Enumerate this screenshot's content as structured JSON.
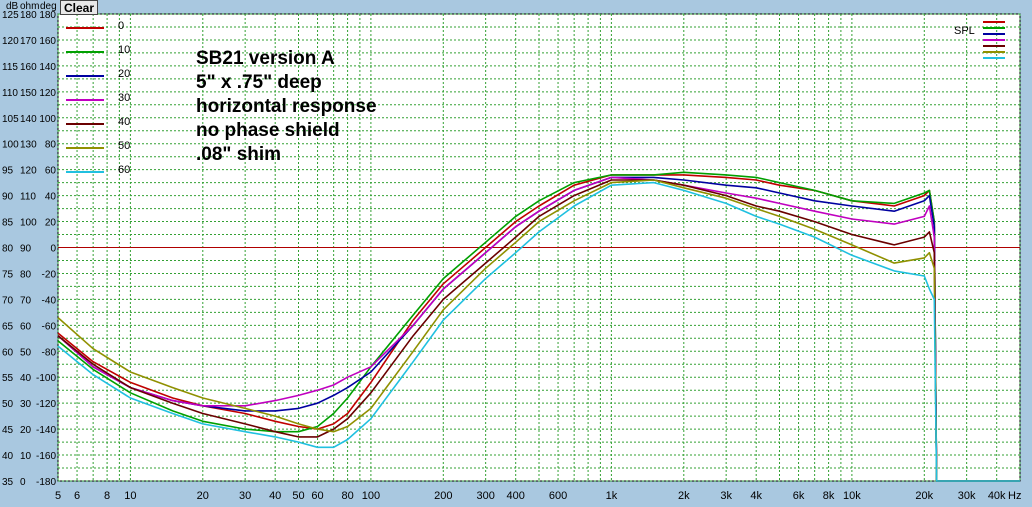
{
  "toolbar": {
    "clear_label": "Clear"
  },
  "axis_headers": {
    "db": "dB",
    "ohm": "ohm",
    "deg": "deg"
  },
  "chart_data": {
    "type": "line",
    "x_scale": "log",
    "xlim": [
      5,
      50000
    ],
    "x_ticks": [
      5,
      6,
      8,
      10,
      20,
      30,
      40,
      50,
      60,
      80,
      100,
      200,
      300,
      400,
      600,
      1000,
      2000,
      3000,
      4000,
      6000,
      8000,
      10000,
      20000,
      30000,
      40000
    ],
    "x_tick_labels": [
      "5",
      "6",
      "8",
      "10",
      "20",
      "30",
      "40",
      "50",
      "60",
      "80",
      "100",
      "200",
      "300",
      "400",
      "600",
      "1k",
      "2k",
      "3k",
      "4k",
      "6k",
      "8k",
      "10k",
      "20k",
      "30k",
      "40k"
    ],
    "x_unit": "Hz",
    "ylim": [
      35,
      125
    ],
    "y_labels_db": [
      "125",
      "120",
      "115",
      "110",
      "105",
      "100",
      "95",
      "90",
      "85",
      "80",
      "75",
      "70",
      "65",
      "60",
      "55",
      "50",
      "45",
      "40",
      "35"
    ],
    "y_labels_ohm": [
      "180",
      "170",
      "160",
      "150",
      "140",
      "130",
      "120",
      "110",
      "100",
      "90",
      "80",
      "70",
      "60",
      "50",
      "40",
      "30",
      "20",
      "10",
      "0"
    ],
    "y_labels_deg": [
      "180",
      "160",
      "140",
      "120",
      "100",
      "80",
      "60",
      "40",
      "20",
      "0",
      "-20",
      "-40",
      "-60",
      "-80",
      "-100",
      "-120",
      "-140",
      "-160",
      "-180"
    ],
    "grid": true,
    "reference_line_y": 80,
    "annotations": [
      "SB21 version A",
      "5\" x .75\" deep",
      "horizontal response",
      "no phase shield",
      ".08\" shim"
    ],
    "legend_title": "SPL",
    "series": [
      {
        "name": "0",
        "color": "#c00000",
        "points": [
          [
            5,
            63.5
          ],
          [
            7,
            58
          ],
          [
            10,
            54
          ],
          [
            15,
            51
          ],
          [
            20,
            49.5
          ],
          [
            30,
            48
          ],
          [
            40,
            46.5
          ],
          [
            50,
            45.5
          ],
          [
            60,
            45
          ],
          [
            70,
            46
          ],
          [
            80,
            48
          ],
          [
            100,
            54
          ],
          [
            150,
            66
          ],
          [
            200,
            73
          ],
          [
            300,
            80
          ],
          [
            400,
            85
          ],
          [
            500,
            88
          ],
          [
            700,
            92
          ],
          [
            1000,
            94
          ],
          [
            1500,
            94
          ],
          [
            2000,
            94
          ],
          [
            3000,
            93.5
          ],
          [
            4000,
            93
          ],
          [
            5000,
            92
          ],
          [
            7000,
            91
          ],
          [
            10000,
            89
          ],
          [
            15000,
            88
          ],
          [
            20000,
            90
          ],
          [
            21000,
            91
          ],
          [
            22000,
            85
          ],
          [
            22500,
            35
          ]
        ]
      },
      {
        "name": "10",
        "color": "#00a000",
        "points": [
          [
            5,
            62
          ],
          [
            7,
            56.5
          ],
          [
            10,
            52
          ],
          [
            15,
            48.5
          ],
          [
            20,
            46.5
          ],
          [
            30,
            45
          ],
          [
            40,
            44.5
          ],
          [
            50,
            44.5
          ],
          [
            60,
            45.5
          ],
          [
            70,
            48
          ],
          [
            80,
            51
          ],
          [
            100,
            57
          ],
          [
            150,
            67
          ],
          [
            200,
            74
          ],
          [
            300,
            81
          ],
          [
            400,
            86
          ],
          [
            500,
            89
          ],
          [
            700,
            92.5
          ],
          [
            1000,
            94
          ],
          [
            1500,
            94
          ],
          [
            2000,
            94.5
          ],
          [
            3000,
            94
          ],
          [
            4000,
            93.5
          ],
          [
            5000,
            92.5
          ],
          [
            7000,
            91
          ],
          [
            10000,
            89
          ],
          [
            15000,
            88.5
          ],
          [
            20000,
            90.5
          ],
          [
            21000,
            91
          ],
          [
            22000,
            85
          ],
          [
            22500,
            35
          ]
        ]
      },
      {
        "name": "20",
        "color": "#0000a0",
        "points": [
          [
            5,
            63
          ],
          [
            7,
            57
          ],
          [
            10,
            53
          ],
          [
            15,
            50.5
          ],
          [
            20,
            49.5
          ],
          [
            30,
            48.5
          ],
          [
            40,
            48.5
          ],
          [
            50,
            49
          ],
          [
            60,
            50
          ],
          [
            70,
            51.5
          ],
          [
            80,
            53
          ],
          [
            100,
            56
          ],
          [
            150,
            65
          ],
          [
            200,
            72
          ],
          [
            300,
            79
          ],
          [
            400,
            84
          ],
          [
            500,
            87
          ],
          [
            700,
            91
          ],
          [
            1000,
            93.5
          ],
          [
            1500,
            93.5
          ],
          [
            2000,
            93
          ],
          [
            3000,
            92
          ],
          [
            4000,
            91.5
          ],
          [
            5000,
            90.5
          ],
          [
            7000,
            89
          ],
          [
            10000,
            88
          ],
          [
            15000,
            87
          ],
          [
            20000,
            89
          ],
          [
            21000,
            90
          ],
          [
            22000,
            84
          ],
          [
            22500,
            35
          ]
        ]
      },
      {
        "name": "30",
        "color": "#c000c0",
        "points": [
          [
            5,
            63
          ],
          [
            7,
            57
          ],
          [
            10,
            53
          ],
          [
            15,
            50.5
          ],
          [
            20,
            49.5
          ],
          [
            30,
            49.5
          ],
          [
            40,
            50.5
          ],
          [
            50,
            51.5
          ],
          [
            60,
            52.5
          ],
          [
            70,
            53.5
          ],
          [
            80,
            55
          ],
          [
            100,
            57
          ],
          [
            150,
            65
          ],
          [
            200,
            72
          ],
          [
            300,
            79
          ],
          [
            400,
            84
          ],
          [
            500,
            87
          ],
          [
            700,
            91
          ],
          [
            1000,
            93.5
          ],
          [
            1500,
            93
          ],
          [
            2000,
            92
          ],
          [
            3000,
            90.5
          ],
          [
            4000,
            89.5
          ],
          [
            5000,
            88.5
          ],
          [
            7000,
            87
          ],
          [
            10000,
            85.5
          ],
          [
            15000,
            84.5
          ],
          [
            20000,
            86
          ],
          [
            21000,
            88
          ],
          [
            22000,
            82
          ],
          [
            22500,
            35
          ]
        ]
      },
      {
        "name": "40",
        "color": "#6a0000",
        "points": [
          [
            5,
            63
          ],
          [
            7,
            57.5
          ],
          [
            10,
            53
          ],
          [
            15,
            50
          ],
          [
            20,
            48
          ],
          [
            30,
            46
          ],
          [
            40,
            44.5
          ],
          [
            50,
            43.5
          ],
          [
            60,
            43.5
          ],
          [
            70,
            45
          ],
          [
            80,
            47
          ],
          [
            100,
            52
          ],
          [
            150,
            63
          ],
          [
            200,
            70
          ],
          [
            300,
            77
          ],
          [
            400,
            82
          ],
          [
            500,
            86
          ],
          [
            700,
            90
          ],
          [
            1000,
            93
          ],
          [
            1500,
            93
          ],
          [
            2000,
            92
          ],
          [
            3000,
            90
          ],
          [
            4000,
            88
          ],
          [
            5000,
            87
          ],
          [
            7000,
            85
          ],
          [
            10000,
            82.5
          ],
          [
            15000,
            80.5
          ],
          [
            20000,
            82
          ],
          [
            21000,
            83
          ],
          [
            22000,
            79
          ],
          [
            22500,
            35
          ]
        ]
      },
      {
        "name": "50",
        "color": "#909000",
        "points": [
          [
            5,
            66.5
          ],
          [
            7,
            60.5
          ],
          [
            10,
            56
          ],
          [
            15,
            53
          ],
          [
            20,
            51
          ],
          [
            30,
            49
          ],
          [
            40,
            47.5
          ],
          [
            50,
            46
          ],
          [
            60,
            45
          ],
          [
            70,
            44.5
          ],
          [
            80,
            45.5
          ],
          [
            100,
            49
          ],
          [
            150,
            60
          ],
          [
            200,
            68
          ],
          [
            300,
            76
          ],
          [
            400,
            81
          ],
          [
            500,
            85
          ],
          [
            700,
            89
          ],
          [
            1000,
            92.5
          ],
          [
            1500,
            93
          ],
          [
            2000,
            91.5
          ],
          [
            3000,
            89.5
          ],
          [
            4000,
            87.5
          ],
          [
            5000,
            86
          ],
          [
            7000,
            83.5
          ],
          [
            10000,
            80.5
          ],
          [
            15000,
            77
          ],
          [
            20000,
            78
          ],
          [
            21000,
            79
          ],
          [
            22000,
            76
          ],
          [
            22500,
            35
          ]
        ]
      },
      {
        "name": "60",
        "color": "#20c0e0",
        "points": [
          [
            5,
            61
          ],
          [
            7,
            55.5
          ],
          [
            10,
            51
          ],
          [
            15,
            48
          ],
          [
            20,
            46
          ],
          [
            30,
            44.5
          ],
          [
            40,
            43.5
          ],
          [
            50,
            42.5
          ],
          [
            60,
            41.5
          ],
          [
            70,
            41.5
          ],
          [
            80,
            43
          ],
          [
            100,
            47
          ],
          [
            150,
            58
          ],
          [
            200,
            66
          ],
          [
            300,
            74
          ],
          [
            400,
            79
          ],
          [
            500,
            83
          ],
          [
            700,
            88
          ],
          [
            1000,
            92
          ],
          [
            1500,
            92.5
          ],
          [
            2000,
            91
          ],
          [
            3000,
            88.5
          ],
          [
            4000,
            86
          ],
          [
            5000,
            84.5
          ],
          [
            7000,
            82
          ],
          [
            10000,
            78.5
          ],
          [
            15000,
            75.5
          ],
          [
            20000,
            74.5
          ],
          [
            21000,
            72
          ],
          [
            22000,
            70
          ],
          [
            22500,
            35
          ]
        ]
      }
    ]
  }
}
